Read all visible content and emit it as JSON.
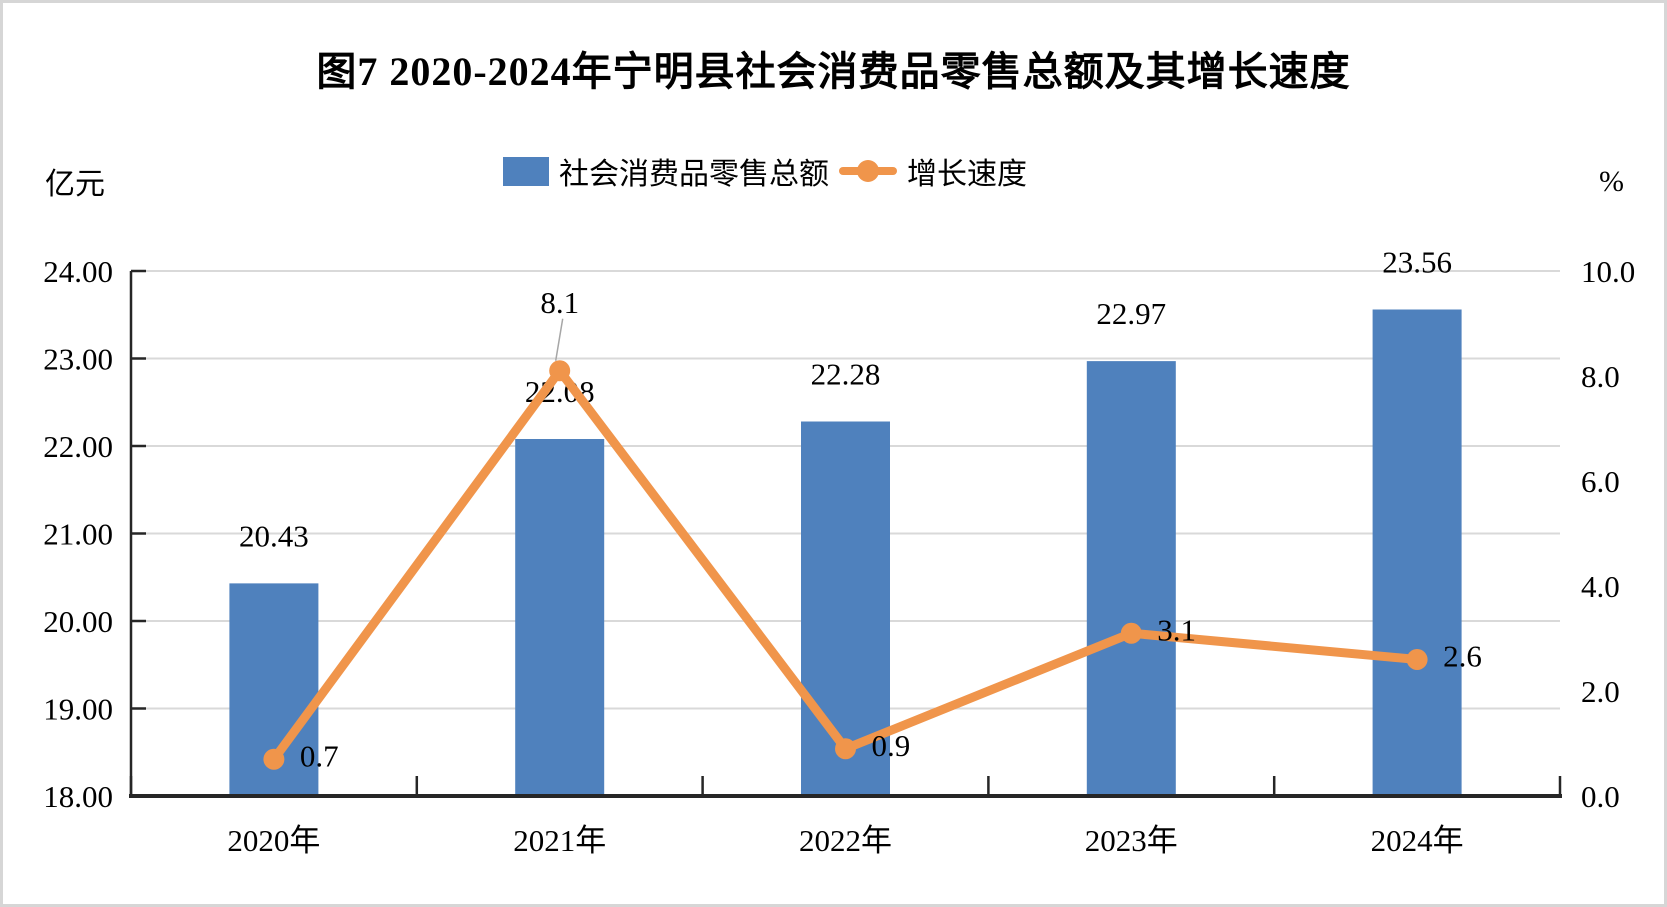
{
  "figure": {
    "title": "图7 2020-2024年宁明县社会消费品零售总额及其增长速度"
  },
  "chart_data": {
    "type": "combo-bar-line",
    "title": "图7 2020-2024年宁明县社会消费品零售总额及其增长速度",
    "categories": [
      "2020年",
      "2021年",
      "2022年",
      "2023年",
      "2024年"
    ],
    "series": [
      {
        "name": "社会消费品零售总额",
        "type": "bar",
        "axis": "left",
        "unit": "亿元",
        "color": "#4F81BD",
        "values": [
          20.43,
          22.08,
          22.28,
          22.97,
          23.56
        ],
        "data_labels": [
          "20.43",
          "22.08",
          "22.28",
          "22.97",
          "23.56"
        ]
      },
      {
        "name": "增长速度",
        "type": "line",
        "axis": "right",
        "unit": "%",
        "color": "#F0954B",
        "values": [
          0.7,
          8.1,
          0.9,
          3.1,
          2.6
        ],
        "data_labels": [
          "0.7",
          "8.1",
          "0.9",
          "3.1",
          "2.6"
        ],
        "label_positions": [
          "right",
          "above",
          "right",
          "right",
          "right"
        ]
      }
    ],
    "left_axis": {
      "unit": "亿元",
      "min": 18,
      "max": 24,
      "tick_labels": [
        "24.00",
        "23.00",
        "22.00",
        "21.00",
        "20.00",
        "19.00",
        "18.00"
      ]
    },
    "right_axis": {
      "unit": "%",
      "min": 0,
      "max": 10,
      "tick_labels": [
        "10.0",
        "8.0",
        "6.0",
        "4.0",
        "2.0",
        "0.0"
      ]
    },
    "legend": {
      "position": "top",
      "entries": [
        "社会消费品零售总额",
        "增长速度"
      ]
    },
    "grid": {
      "horizontal": true,
      "vertical": false,
      "color": "#D9D9D9"
    },
    "colors": {
      "bar": "#4F81BD",
      "line": "#F0954B",
      "axis": "#262626",
      "leader_line": "#A6A6A6"
    }
  }
}
